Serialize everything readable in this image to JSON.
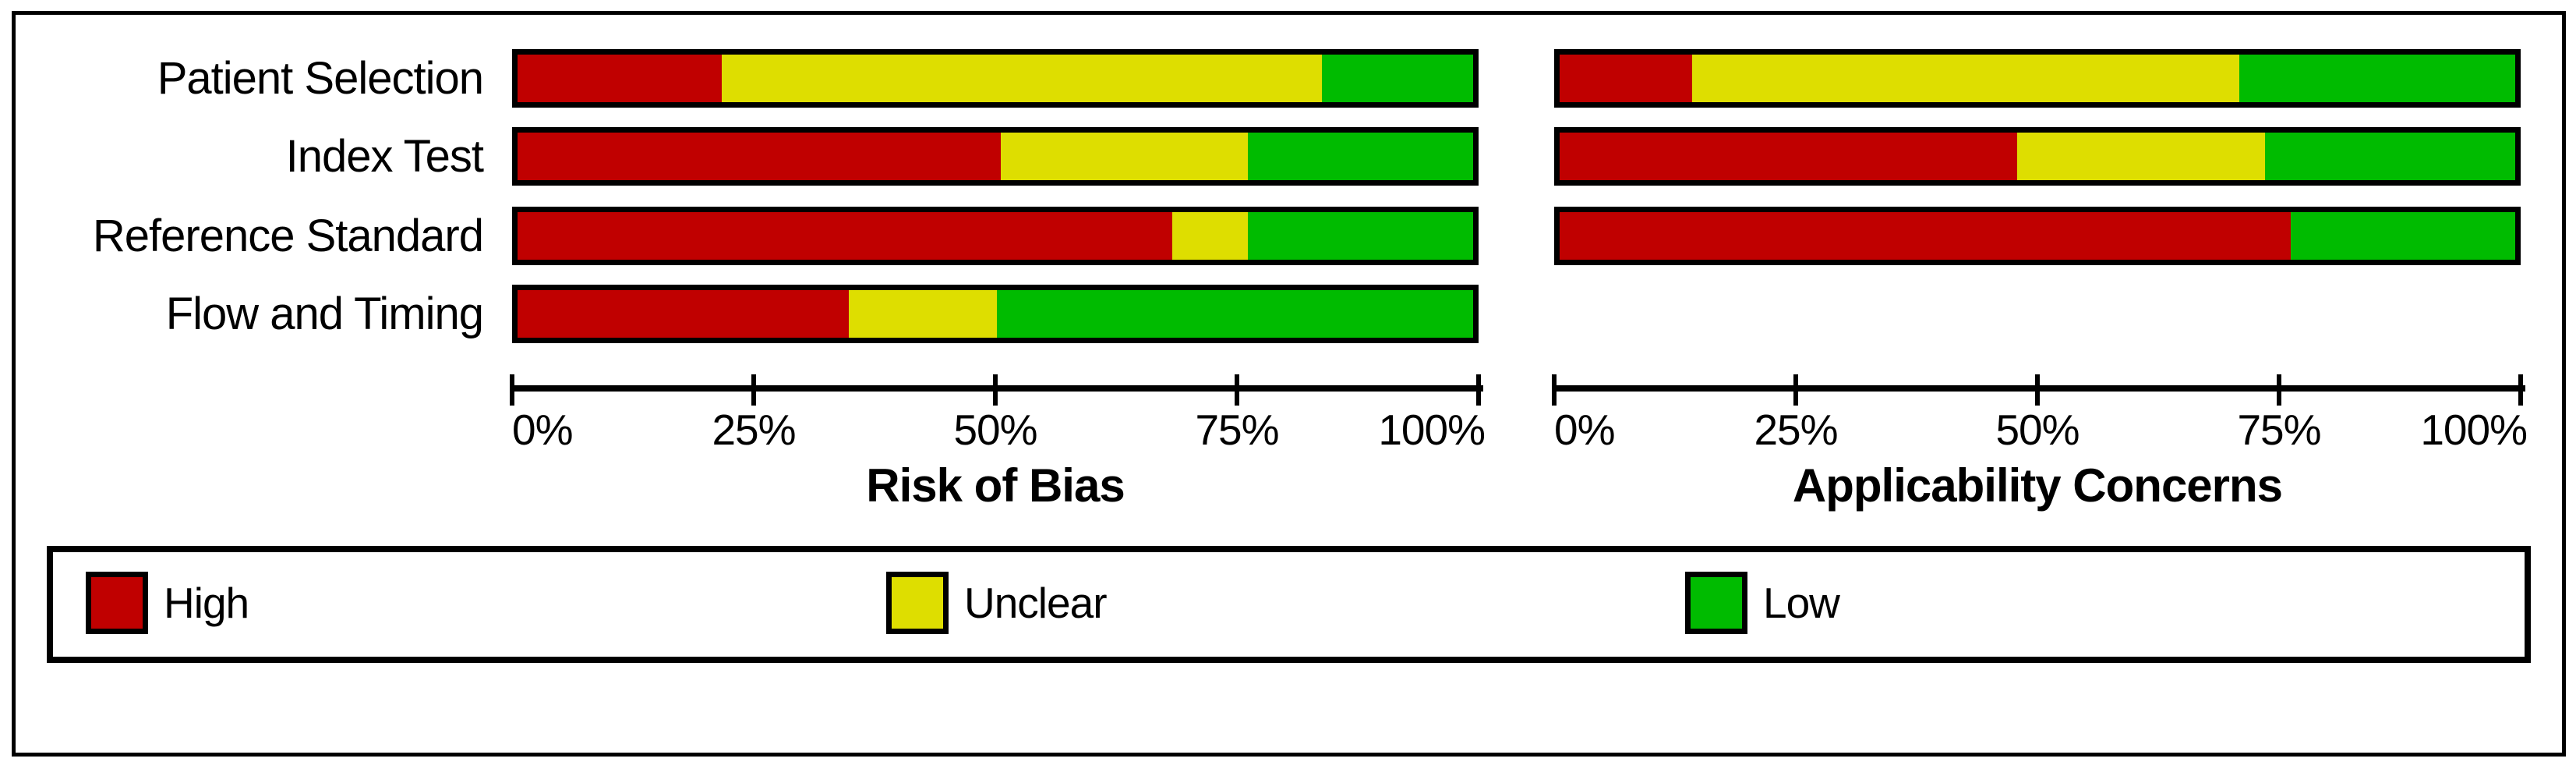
{
  "figure": {
    "row_labels": [
      "Patient Selection",
      "Index Test",
      "Reference Standard",
      "Flow and Timing"
    ]
  },
  "chart_data": [
    {
      "type": "bar",
      "orientation": "horizontal_stacked",
      "title": "Risk of Bias",
      "categories": [
        "Patient Selection",
        "Index Test",
        "Reference Standard",
        "Flow and Timing"
      ],
      "x_ticks": [
        "0%",
        "25%",
        "50%",
        "75%",
        "100%"
      ],
      "x_tick_values": [
        0,
        25,
        50,
        75,
        100
      ],
      "xlim": [
        0,
        100
      ],
      "grid": false,
      "legend_position": "bottom",
      "series": [
        {
          "name": "High",
          "color": "#c00000",
          "values": [
            21.4,
            50.6,
            68.5,
            34.7
          ]
        },
        {
          "name": "Unclear",
          "color": "#dede00",
          "values": [
            62.8,
            25.8,
            7.9,
            15.5
          ]
        },
        {
          "name": "Low",
          "color": "#00bb00",
          "values": [
            15.8,
            23.6,
            23.6,
            49.8
          ]
        }
      ]
    },
    {
      "type": "bar",
      "orientation": "horizontal_stacked",
      "title": "Applicability Concerns",
      "categories": [
        "Patient Selection",
        "Index Test",
        "Reference Standard",
        "Flow and Timing"
      ],
      "x_ticks": [
        "0%",
        "25%",
        "50%",
        "75%",
        "100%"
      ],
      "x_tick_values": [
        0,
        25,
        50,
        75,
        100
      ],
      "xlim": [
        0,
        100
      ],
      "grid": false,
      "legend_position": "bottom",
      "series": [
        {
          "name": "High",
          "color": "#c00000",
          "values": [
            13.9,
            47.9,
            76.5,
            null
          ]
        },
        {
          "name": "Unclear",
          "color": "#dede00",
          "values": [
            57.2,
            25.9,
            0,
            null
          ]
        },
        {
          "name": "Low",
          "color": "#00bb00",
          "values": [
            28.9,
            26.2,
            23.5,
            null
          ]
        }
      ]
    }
  ],
  "legend": {
    "items": [
      {
        "label": "High",
        "color": "#c00000"
      },
      {
        "label": "Unclear",
        "color": "#dede00"
      },
      {
        "label": "Low",
        "color": "#00bb00"
      }
    ]
  }
}
